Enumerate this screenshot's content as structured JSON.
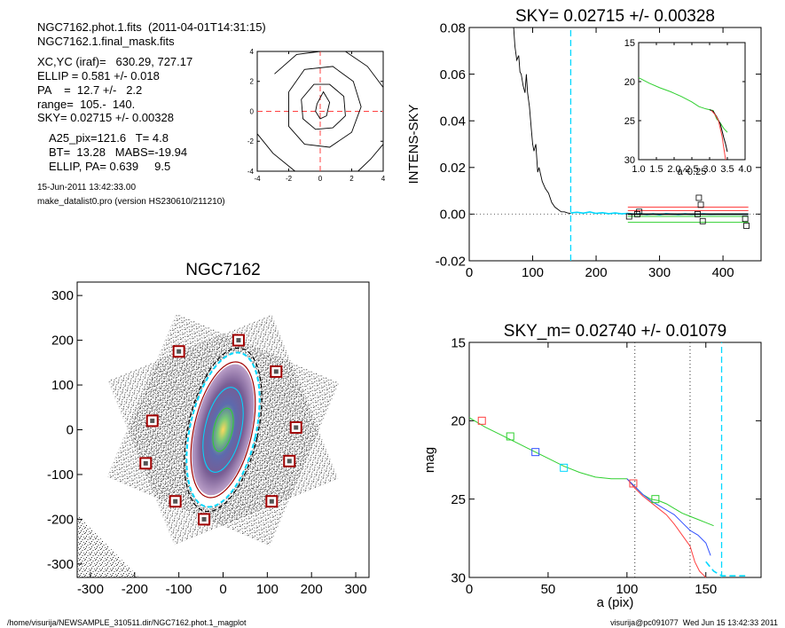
{
  "info": {
    "line1": "NGC7162.phot.1.fits  (2011-04-01T14:31:15)",
    "line2": "NGC7162.1.final_mask.fits",
    "line3": "XC,YC (iraf)=   630.29, 727.17",
    "line4": "ELLIP = 0.581 +/- 0.018",
    "line5": "PA    =  12.7 +/-   2.2",
    "line6": "range=  105.-  140.",
    "line7": "SKY= 0.02715 +/- 0.00328",
    "line8": "A25_pix=121.6   T= 4.8",
    "line9": "BT=  13.28   MABS=-19.94",
    "line10": "ELLIP, PA= 0.639     9.5",
    "line11": "15-Jun-2011 13:42:33.00",
    "line12": "make_datalist0.pro (version HS230610/211210)"
  },
  "footer": {
    "left": "/home/visurija/NEWSAMPLE_310511.dir/NGC7162.phot.1_magplot",
    "right": "visurija@pc091077  Wed Jun 15 13:42:33 2011"
  },
  "colors": {
    "cyan": "#00d8ff",
    "red": "#ff4040",
    "green": "#30d030",
    "blue": "#3050ff",
    "darkred": "#a00000",
    "black": "#000000"
  },
  "chart_data": [
    {
      "id": "contour",
      "type": "contour",
      "title": "",
      "xlim": [
        -4,
        4
      ],
      "ylim": [
        -4,
        4
      ],
      "xticks": [
        "-4",
        "-2",
        "0",
        "2",
        "4"
      ],
      "yticks": [
        "-4",
        "-2",
        "0",
        "2",
        "4"
      ],
      "crosshair": [
        0,
        0
      ],
      "contours": [
        [
          [
            -0.2,
            0.5
          ],
          [
            0.2,
            1.3
          ],
          [
            0.6,
            0.6
          ],
          [
            0.4,
            -0.3
          ],
          [
            0,
            -0.5
          ],
          [
            -0.3,
            0
          ]
        ],
        [
          [
            -1.2,
            0.8
          ],
          [
            -0.4,
            1.8
          ],
          [
            0.6,
            1.8
          ],
          [
            1.5,
            1
          ],
          [
            1.6,
            -0.3
          ],
          [
            0.8,
            -1.1
          ],
          [
            -0.3,
            -1.2
          ],
          [
            -1.1,
            -0.5
          ]
        ],
        [
          [
            -2,
            1.3
          ],
          [
            -1,
            2.8
          ],
          [
            0.8,
            3
          ],
          [
            2.1,
            2
          ],
          [
            2.6,
            0.3
          ],
          [
            2,
            -1.4
          ],
          [
            0.6,
            -2.4
          ],
          [
            -1,
            -2.2
          ],
          [
            -2,
            -1
          ]
        ],
        [
          [
            -2.9,
            2.5
          ],
          [
            -1.5,
            3.8
          ],
          [
            0,
            4
          ]
        ],
        [
          [
            1.6,
            4
          ],
          [
            3,
            3
          ],
          [
            4,
            1.6
          ]
        ],
        [
          [
            -4,
            -1.5
          ],
          [
            -3,
            -2.8
          ],
          [
            -1.6,
            -4
          ]
        ],
        [
          [
            4,
            -2.2
          ],
          [
            3.2,
            -3.2
          ],
          [
            2.4,
            -4
          ]
        ]
      ]
    },
    {
      "id": "sky",
      "type": "line",
      "title": "SKY= 0.02715 +/- 0.00328",
      "xlabel": "",
      "ylabel": "INTENS-SKY",
      "xlim": [
        0,
        460
      ],
      "ylim": [
        -0.02,
        0.08
      ],
      "xticks": [
        "0",
        "100",
        "200",
        "300",
        "400"
      ],
      "yticks": [
        "-0.02",
        "0.00",
        "0.02",
        "0.04",
        "0.06",
        "0.08"
      ],
      "vline": 160,
      "series": [
        {
          "color": "black",
          "x": [
            70,
            72,
            75,
            78,
            80,
            82,
            85,
            88,
            90,
            92,
            95,
            98,
            100,
            102,
            105,
            108,
            110,
            115,
            120,
            125,
            130,
            135,
            140,
            145,
            150,
            155,
            160
          ],
          "y": [
            0.08,
            0.072,
            0.066,
            0.068,
            0.061,
            0.06,
            0.055,
            0.052,
            0.06,
            0.052,
            0.046,
            0.036,
            0.03,
            0.027,
            0.03,
            0.018,
            0.02,
            0.014,
            0.011,
            0.009,
            0.005,
            0.003,
            0.002,
            0.001,
            0.001,
            0.0005,
            0.0003
          ]
        },
        {
          "color": "cyan",
          "x": [
            160,
            170,
            180,
            190,
            200,
            210,
            220,
            230,
            240,
            250,
            260,
            270,
            280,
            290,
            300,
            310,
            320,
            330,
            340,
            350,
            360,
            370,
            380,
            390,
            400,
            410,
            420,
            430,
            440
          ],
          "y": [
            0.0005,
            0.0008,
            0.0004,
            0.0009,
            0.0003,
            0.0006,
            0.0002,
            0.0005,
            0.0001,
            0.0003,
            0.0,
            0.0002,
            -0.0002,
            0.0001,
            -0.0003,
            0.0002,
            0.0,
            -0.0002,
            0.0001,
            -0.0001,
            0.0,
            0.0001,
            -0.0001,
            0.0,
            0.0,
            0.0,
            0.0,
            0.0,
            0.0
          ]
        }
      ],
      "hlines": [
        {
          "color": "red",
          "y": 0.003,
          "x": [
            250,
            440
          ]
        },
        {
          "color": "red",
          "y": 0.0015,
          "x": [
            250,
            440
          ]
        },
        {
          "color": "green",
          "y": -0.001,
          "x": [
            250,
            440
          ]
        },
        {
          "color": "green",
          "y": -0.0035,
          "x": [
            250,
            440
          ]
        },
        {
          "color": "black",
          "y": 0.0,
          "x": [
            250,
            440
          ]
        }
      ],
      "markers": [
        [
          252,
          -0.001
        ],
        [
          265,
          0.0
        ],
        [
          268,
          0.001
        ],
        [
          360,
          0.0
        ],
        [
          362,
          0.007
        ],
        [
          365,
          0.004
        ],
        [
          368,
          -0.003
        ],
        [
          435,
          -0.002
        ],
        [
          437,
          -0.005
        ]
      ]
    },
    {
      "id": "inset",
      "type": "line",
      "xlabel": "a^0.25",
      "ylabel": "",
      "xlim": [
        1.0,
        4.0
      ],
      "ylim": [
        30,
        15
      ],
      "xticks": [
        "1.0",
        "1.5",
        "2.0",
        "2.5",
        "3.0",
        "3.5",
        "4.0"
      ],
      "yticks": [
        "15",
        "20",
        "25",
        "30"
      ],
      "series": [
        {
          "color": "green",
          "x": [
            1.0,
            1.3,
            1.6,
            1.9,
            2.2,
            2.5,
            2.7,
            2.9,
            3.1,
            3.2,
            3.3,
            3.4,
            3.5
          ],
          "y": [
            19.5,
            20.2,
            20.8,
            21.3,
            21.9,
            22.6,
            23.2,
            23.5,
            23.7,
            24.8,
            25.3,
            26,
            26.5
          ]
        },
        {
          "color": "black",
          "x": [
            3.0,
            3.1,
            3.2,
            3.3,
            3.35,
            3.4,
            3.45,
            3.5
          ],
          "y": [
            23.6,
            23.8,
            24.5,
            25.4,
            26.3,
            27.2,
            28,
            29
          ]
        },
        {
          "color": "red",
          "x": [
            3.05,
            3.15,
            3.25,
            3.3,
            3.35,
            3.4,
            3.45
          ],
          "y": [
            23.7,
            24.2,
            25,
            26,
            27,
            28.5,
            30
          ]
        }
      ]
    },
    {
      "id": "image",
      "type": "scatter",
      "title": "NGC7162",
      "xlim": [
        -330,
        330
      ],
      "ylim": [
        -330,
        330
      ],
      "xticks": [
        "-300",
        "-200",
        "-100",
        "0",
        "100",
        "200",
        "300"
      ],
      "yticks": [
        "-300",
        "-200",
        "-100",
        "0",
        "100",
        "200",
        "300"
      ],
      "galaxy": {
        "center": [
          0,
          0
        ],
        "semi_major": 178,
        "ellip": 0.581,
        "pa_deg": 12.7
      },
      "boxes": [
        [
          -100,
          175
        ],
        [
          35,
          200
        ],
        [
          120,
          130
        ],
        [
          -160,
          20
        ],
        [
          165,
          5
        ],
        [
          -175,
          -75
        ],
        [
          -108,
          -160
        ],
        [
          -43,
          -200
        ],
        [
          110,
          -160
        ],
        [
          150,
          -70
        ]
      ]
    },
    {
      "id": "mag",
      "type": "line",
      "title": "SKY_m=  0.02740 +/- 0.01079",
      "xlabel": "a (pix)",
      "ylabel": "mag",
      "xlim": [
        0,
        185
      ],
      "ylim": [
        30,
        15
      ],
      "xticks": [
        "0",
        "50",
        "100",
        "150"
      ],
      "yticks": [
        "15",
        "20",
        "25",
        "30"
      ],
      "vlines_dotted": [
        105,
        140
      ],
      "vline_dashed": 160,
      "series": [
        {
          "color": "green",
          "x": [
            0,
            10,
            20,
            30,
            40,
            50,
            60,
            70,
            80,
            90,
            100,
            105,
            110,
            115,
            120,
            125,
            130,
            135,
            140,
            145,
            150,
            155
          ],
          "y": [
            19.8,
            20.4,
            20.9,
            21.4,
            21.9,
            22.4,
            22.9,
            23.3,
            23.6,
            23.7,
            23.7,
            24.2,
            24.7,
            25.0,
            25.1,
            25.3,
            25.6,
            25.9,
            26.1,
            26.3,
            26.5,
            26.7
          ]
        },
        {
          "color": "red",
          "x": [
            100,
            105,
            110,
            115,
            120,
            125,
            130,
            135,
            140,
            143,
            146,
            150
          ],
          "y": [
            23.7,
            24.3,
            24.8,
            25.2,
            25.6,
            26,
            26.6,
            27.3,
            28,
            29,
            29.6,
            30
          ]
        },
        {
          "color": "blue",
          "x": [
            100,
            105,
            110,
            115,
            120,
            125,
            130,
            135,
            140,
            145,
            150,
            153
          ],
          "y": [
            23.7,
            24.2,
            24.7,
            25.1,
            25.4,
            25.7,
            26.0,
            26.5,
            27,
            27.3,
            27.8,
            28.6
          ]
        },
        {
          "color": "cyan",
          "x": [
            150,
            155,
            160,
            165,
            170,
            175
          ],
          "y": [
            29,
            29.6,
            29.9,
            29.9,
            29.9,
            29.9
          ]
        }
      ],
      "markers": [
        {
          "color": "red",
          "x": 8,
          "y": 20
        },
        {
          "color": "green",
          "x": 26,
          "y": 21
        },
        {
          "color": "blue",
          "x": 42,
          "y": 22
        },
        {
          "color": "cyan",
          "x": 60,
          "y": 23
        },
        {
          "color": "red",
          "x": 104,
          "y": 24
        },
        {
          "color": "green",
          "x": 118,
          "y": 25
        }
      ]
    }
  ]
}
